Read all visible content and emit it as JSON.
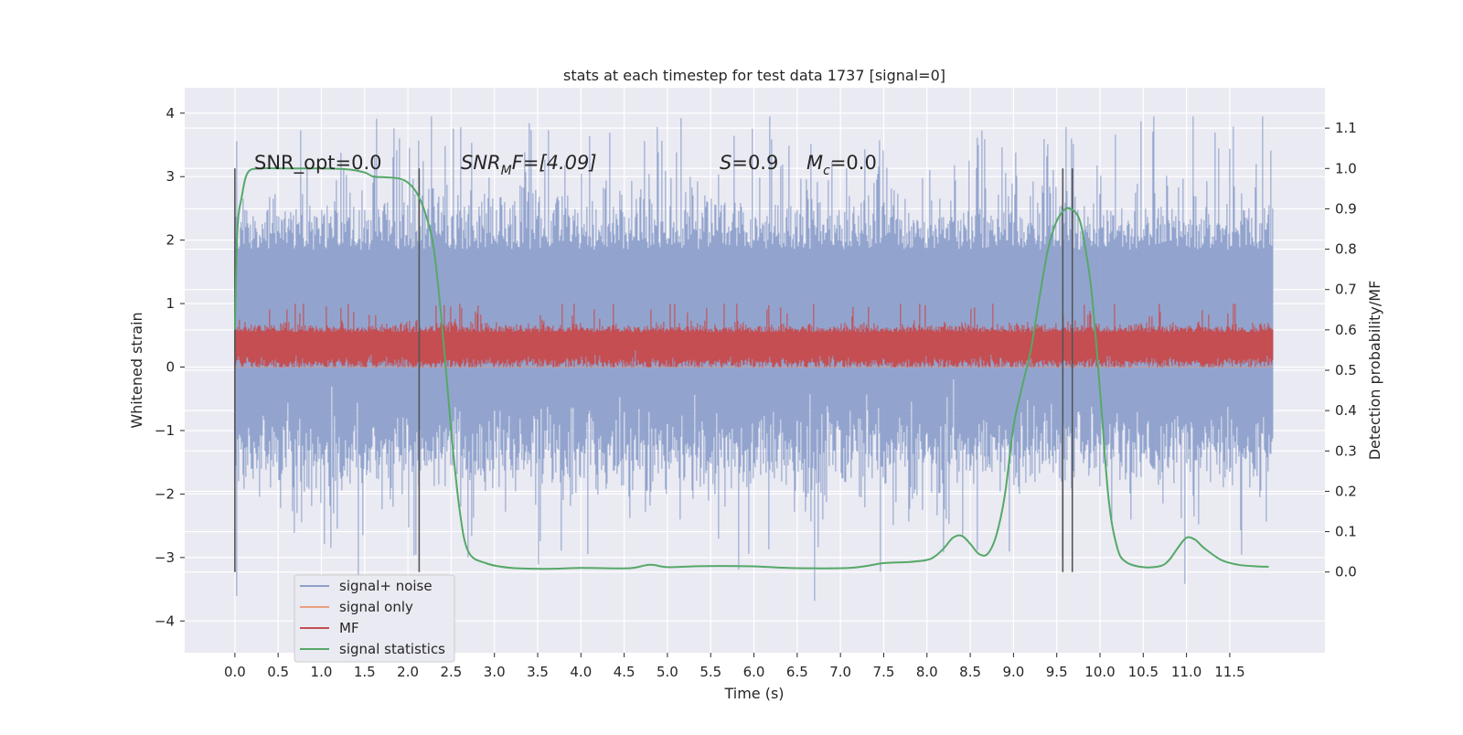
{
  "chart_data": {
    "type": "line",
    "title": "stats at each timestep for test data 1737 [signal=0]",
    "xlabel": "Time (s)",
    "ylabel": "Whitened strain",
    "ylabel_right": "Detection probability/MF",
    "xlim": [
      -0.58,
      12.6
    ],
    "ylim": [
      -4.5,
      4.4
    ],
    "ylim_right": [
      -0.2,
      1.2
    ],
    "x_ticks": [
      0.0,
      0.5,
      1.0,
      1.5,
      2.0,
      2.5,
      3.0,
      3.5,
      4.0,
      4.5,
      5.0,
      5.5,
      6.0,
      6.5,
      7.0,
      7.5,
      8.0,
      8.5,
      9.0,
      9.5,
      10.0,
      10.5,
      11.0,
      11.5
    ],
    "x_tick_labels": [
      "0.0",
      "0.5",
      "1.0",
      "1.5",
      "2.0",
      "2.5",
      "3.0",
      "3.5",
      "4.0",
      "4.5",
      "5.0",
      "5.5",
      "6.0",
      "6.5",
      "7.0",
      "7.5",
      "8.0",
      "8.5",
      "9.0",
      "9.5",
      "10.0",
      "10.5",
      "11.0",
      "11.5"
    ],
    "y_ticks": [
      -4,
      -3,
      -2,
      -1,
      0,
      1,
      2,
      3,
      4
    ],
    "y_tick_labels": [
      "−4",
      "−3",
      "−2",
      "−1",
      "0",
      "1",
      "2",
      "3",
      "4"
    ],
    "y_ticks_right": [
      0.0,
      0.1,
      0.2,
      0.3,
      0.4,
      0.5,
      0.6,
      0.7,
      0.8,
      0.9,
      1.0,
      1.1
    ],
    "y_tick_labels_right": [
      "0.0",
      "0.1",
      "0.2",
      "0.3",
      "0.4",
      "0.5",
      "0.6",
      "0.7",
      "0.8",
      "0.9",
      "1.0",
      "1.1"
    ],
    "grid": true,
    "legend_position": "bottom-left",
    "series": [
      {
        "name": "signal+ noise",
        "color": "#8da0cb",
        "axis": "left",
        "x_range": [
          0.0,
          12.0
        ],
        "approx_range": [
          -4.1,
          3.95
        ],
        "typical_band": [
          -1.35,
          1.85
        ]
      },
      {
        "name": "signal only",
        "color": "#e8a07e",
        "axis": "left",
        "x": [
          0.0,
          12.0
        ],
        "y": [
          0.0,
          0.0
        ]
      },
      {
        "name": "MF",
        "color": "#c44e52",
        "axis": "left",
        "x_range": [
          0.0,
          12.0
        ],
        "approx_range": [
          0.0,
          1.0
        ],
        "typical_band": [
          0.05,
          0.55
        ]
      },
      {
        "name": "signal statistics",
        "color": "#55a868",
        "axis": "right",
        "x": [
          0.0,
          0.03,
          0.08,
          0.15,
          0.3,
          0.6,
          1.0,
          1.3,
          1.5,
          1.6,
          1.75,
          1.9,
          2.0,
          2.1,
          2.2,
          2.3,
          2.4,
          2.5,
          2.6,
          2.7,
          2.9,
          3.2,
          3.6,
          4.0,
          4.4,
          4.6,
          4.8,
          5.0,
          5.3,
          5.6,
          6.0,
          6.4,
          6.8,
          7.1,
          7.3,
          7.5,
          7.8,
          8.0,
          8.1,
          8.2,
          8.3,
          8.4,
          8.5,
          8.6,
          8.7,
          8.8,
          8.9,
          9.0,
          9.1,
          9.2,
          9.3,
          9.4,
          9.5,
          9.6,
          9.65,
          9.7,
          9.75,
          9.8,
          9.9,
          10.0,
          10.1,
          10.2,
          10.3,
          10.5,
          10.7,
          10.8,
          10.9,
          11.0,
          11.1,
          11.2,
          11.4,
          11.6,
          11.8,
          11.95
        ],
        "y": [
          0.6,
          0.85,
          0.93,
          0.99,
          1.0,
          1.0,
          1.0,
          0.998,
          0.99,
          0.98,
          0.978,
          0.975,
          0.965,
          0.94,
          0.89,
          0.8,
          0.6,
          0.35,
          0.15,
          0.05,
          0.022,
          0.01,
          0.008,
          0.01,
          0.009,
          0.01,
          0.018,
          0.012,
          0.014,
          0.015,
          0.014,
          0.01,
          0.009,
          0.01,
          0.015,
          0.022,
          0.025,
          0.03,
          0.04,
          0.06,
          0.085,
          0.09,
          0.07,
          0.045,
          0.045,
          0.09,
          0.19,
          0.36,
          0.46,
          0.55,
          0.68,
          0.8,
          0.87,
          0.9,
          0.9,
          0.895,
          0.88,
          0.84,
          0.7,
          0.45,
          0.18,
          0.06,
          0.025,
          0.012,
          0.015,
          0.03,
          0.06,
          0.085,
          0.08,
          0.06,
          0.03,
          0.018,
          0.014,
          0.013
        ]
      }
    ],
    "vertical_markers": [
      0.0,
      2.13,
      9.57,
      9.68
    ],
    "annotations": [
      "SNR_opt=0.0",
      "SNR",
      "M",
      "F=[4.09]",
      "S",
      "=0.9",
      "M",
      "c",
      "=0.0"
    ]
  }
}
